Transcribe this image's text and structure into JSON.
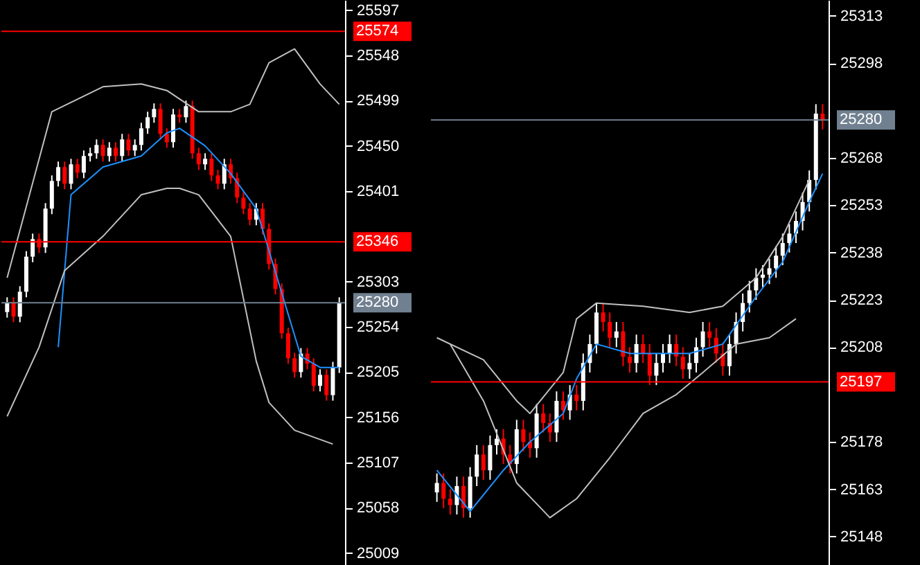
{
  "chart_data": [
    {
      "type": "candlestick",
      "tick_labels": "y",
      "ylim": [
        24996,
        25608
      ],
      "yticks": [
        25597,
        25548,
        25499,
        25450,
        25401,
        25303,
        25254,
        25205,
        25156,
        25107,
        25058,
        25009
      ],
      "categories": [
        null,
        null,
        null,
        null,
        null,
        null,
        null,
        null,
        null,
        null,
        null,
        null,
        null,
        null,
        null,
        null,
        null,
        null,
        null,
        null,
        null,
        null,
        null,
        null,
        null,
        null,
        null,
        null,
        null,
        null,
        null,
        null,
        null,
        null,
        null,
        null,
        null,
        null,
        null,
        null,
        null,
        null,
        null,
        null,
        null,
        null,
        null,
        null,
        null,
        null,
        null,
        null,
        null
      ],
      "ohlc": [
        [
          25270,
          25286,
          25264,
          25280
        ],
        [
          25280,
          25286,
          25259,
          25265
        ],
        [
          25265,
          25298,
          25259,
          25292
        ],
        [
          25292,
          25336,
          25286,
          25330
        ],
        [
          25330,
          25355,
          25324,
          25349
        ],
        [
          25349,
          25355,
          25334,
          25340
        ],
        [
          25340,
          25388,
          25334,
          25382
        ],
        [
          25382,
          25418,
          25376,
          25412
        ],
        [
          25412,
          25433,
          25406,
          25427
        ],
        [
          25427,
          25433,
          25403,
          25409
        ],
        [
          25409,
          25436,
          25403,
          25430
        ],
        [
          25430,
          25436,
          25415,
          25421
        ],
        [
          25421,
          25445,
          25415,
          25439
        ],
        [
          25439,
          25448,
          25433,
          25442
        ],
        [
          25442,
          25457,
          25436,
          25451
        ],
        [
          25451,
          25457,
          25433,
          25439
        ],
        [
          25439,
          25454,
          25433,
          25448
        ],
        [
          25448,
          25454,
          25433,
          25439
        ],
        [
          25439,
          25463,
          25433,
          25457
        ],
        [
          25457,
          25463,
          25439,
          25445
        ],
        [
          25445,
          25457,
          25439,
          25451
        ],
        [
          25451,
          25475,
          25445,
          25469
        ],
        [
          25469,
          25487,
          25463,
          25481
        ],
        [
          25481,
          25496,
          25475,
          25490
        ],
        [
          25490,
          25496,
          25457,
          25463
        ],
        [
          25463,
          25469,
          25448,
          25454
        ],
        [
          25454,
          25490,
          25448,
          25484
        ],
        [
          25484,
          25490,
          25475,
          25481
        ],
        [
          25481,
          25499,
          25475,
          25493
        ],
        [
          25493,
          25499,
          25436,
          25442
        ],
        [
          25442,
          25448,
          25424,
          25430
        ],
        [
          25430,
          25442,
          25424,
          25436
        ],
        [
          25436,
          25442,
          25412,
          25418
        ],
        [
          25418,
          25424,
          25403,
          25409
        ],
        [
          25409,
          25436,
          25403,
          25430
        ],
        [
          25430,
          25436,
          25409,
          25415
        ],
        [
          25415,
          25421,
          25388,
          25394
        ],
        [
          25394,
          25400,
          25376,
          25382
        ],
        [
          25382,
          25388,
          25364,
          25370
        ],
        [
          25370,
          25388,
          25364,
          25382
        ],
        [
          25382,
          25388,
          25354,
          25360
        ],
        [
          25360,
          25366,
          25316,
          25322
        ],
        [
          25322,
          25328,
          25289,
          25295
        ],
        [
          25295,
          25301,
          25241,
          25247
        ],
        [
          25247,
          25253,
          25214,
          25220
        ],
        [
          25220,
          25226,
          25199,
          25205
        ],
        [
          25205,
          25231,
          25199,
          25225
        ],
        [
          25225,
          25231,
          25208,
          25214
        ],
        [
          25214,
          25220,
          25184,
          25190
        ],
        [
          25190,
          25208,
          25184,
          25202
        ],
        [
          25202,
          25208,
          25174,
          25180
        ],
        [
          25180,
          25216,
          25174,
          25210
        ],
        [
          25210,
          25286,
          25204,
          25280
        ]
      ],
      "series": [
        {
          "type": "line",
          "color": "#1e90ff",
          "values": [
            null,
            null,
            null,
            null,
            null,
            null,
            null,
            null,
            25232,
            null,
            25397,
            null,
            null,
            null,
            null,
            25427,
            null,
            null,
            null,
            null,
            null,
            25439,
            null,
            null,
            null,
            25464,
            null,
            25469,
            null,
            null,
            null,
            25450,
            null,
            null,
            null,
            25420,
            null,
            null,
            null,
            25382,
            null,
            null,
            null,
            null,
            null,
            null,
            25222,
            null,
            null,
            25210,
            null,
            null,
            25210
          ]
        },
        {
          "type": "line",
          "color": "#c0c0c0",
          "values": [
            25307,
            null,
            null,
            null,
            null,
            null,
            null,
            25487,
            null,
            null,
            null,
            null,
            null,
            null,
            null,
            25514,
            null,
            null,
            null,
            null,
            null,
            25517,
            null,
            null,
            null,
            25510,
            null,
            null,
            null,
            null,
            25487,
            null,
            null,
            null,
            null,
            25487,
            null,
            null,
            25495,
            null,
            null,
            25540,
            null,
            null,
            null,
            25555,
            null,
            null,
            null,
            25517,
            null,
            null,
            25495
          ]
        },
        {
          "type": "line",
          "color": "#c0c0c0",
          "values": [
            25157,
            null,
            null,
            null,
            null,
            25232,
            null,
            null,
            null,
            25315,
            null,
            null,
            null,
            null,
            null,
            25352,
            null,
            null,
            null,
            null,
            null,
            25397,
            null,
            null,
            null,
            25404,
            null,
            25404,
            null,
            null,
            25397,
            null,
            null,
            null,
            null,
            25352,
            null,
            null,
            null,
            25217,
            null,
            25172,
            null,
            null,
            null,
            25142,
            null,
            null,
            null,
            null,
            null,
            25127,
            null
          ]
        }
      ],
      "ref_lines": [
        {
          "axis": "y",
          "value": 25574,
          "label": "25574",
          "color": "#ff0000"
        },
        {
          "axis": "y",
          "value": 25346,
          "label": "25346",
          "color": "#ff0000"
        },
        {
          "axis": "y",
          "value": 25280,
          "label": "25280",
          "color": "#708090"
        }
      ]
    },
    {
      "type": "candlestick",
      "tick_labels": "y",
      "ylim": [
        25139,
        25318
      ],
      "yticks": [
        25313,
        25298,
        25268,
        25253,
        25238,
        25223,
        25208,
        25178,
        25163,
        25148
      ],
      "categories": [
        null,
        null,
        null,
        null,
        null,
        null,
        null,
        null,
        null,
        null,
        null,
        null,
        null,
        null,
        null,
        null,
        null,
        null,
        null,
        null,
        null,
        null,
        null,
        null,
        null,
        null,
        null,
        null,
        null,
        null,
        null,
        null,
        null,
        null,
        null,
        null,
        null,
        null,
        null,
        null,
        null,
        null,
        null,
        null,
        null,
        null,
        null,
        null,
        null,
        null,
        null,
        null,
        null,
        null,
        null,
        null,
        null,
        null,
        null
      ],
      "ohlc": [
        [
          25162,
          25168,
          25159,
          25165
        ],
        [
          25165,
          25168,
          25157,
          25160
        ],
        [
          25160,
          25163,
          25155,
          25158
        ],
        [
          25158,
          25167,
          25155,
          25164
        ],
        [
          25164,
          25167,
          25154,
          25157
        ],
        [
          25157,
          25170,
          25154,
          25167
        ],
        [
          25167,
          25177,
          25164,
          25174
        ],
        [
          25174,
          25177,
          25166,
          25169
        ],
        [
          25169,
          25180,
          25166,
          25177
        ],
        [
          25177,
          25182,
          25174,
          25179
        ],
        [
          25179,
          25182,
          25171,
          25174
        ],
        [
          25174,
          25177,
          25168,
          25171
        ],
        [
          25171,
          25185,
          25168,
          25182
        ],
        [
          25182,
          25185,
          25175,
          25178
        ],
        [
          25178,
          25181,
          25173,
          25176
        ],
        [
          25176,
          25190,
          25173,
          25187
        ],
        [
          25187,
          25190,
          25181,
          25184
        ],
        [
          25184,
          25187,
          25178,
          25181
        ],
        [
          25181,
          25194,
          25178,
          25191
        ],
        [
          25191,
          25194,
          25185,
          25188
        ],
        [
          25188,
          25196,
          25185,
          25193
        ],
        [
          25193,
          25196,
          25188,
          25191
        ],
        [
          25191,
          25206,
          25188,
          25203
        ],
        [
          25203,
          25212,
          25200,
          25209
        ],
        [
          25209,
          25222,
          25206,
          25219
        ],
        [
          25219,
          25222,
          25213,
          25216
        ],
        [
          25216,
          25219,
          25208,
          25211
        ],
        [
          25211,
          25216,
          25208,
          25213
        ],
        [
          25213,
          25216,
          25202,
          25205
        ],
        [
          25205,
          25208,
          25200,
          25203
        ],
        [
          25203,
          25212,
          25200,
          25209
        ],
        [
          25209,
          25212,
          25203,
          25206
        ],
        [
          25206,
          25209,
          25196,
          25199
        ],
        [
          25199,
          25206,
          25196,
          25203
        ],
        [
          25203,
          25209,
          25200,
          25206
        ],
        [
          25206,
          25212,
          25203,
          25209
        ],
        [
          25209,
          25212,
          25202,
          25205
        ],
        [
          25205,
          25208,
          25198,
          25201
        ],
        [
          25201,
          25206,
          25198,
          25203
        ],
        [
          25203,
          25211,
          25200,
          25208
        ],
        [
          25208,
          25216,
          25205,
          25213
        ],
        [
          25213,
          25216,
          25208,
          25211
        ],
        [
          25211,
          25214,
          25203,
          25206
        ],
        [
          25206,
          25209,
          25199,
          25202
        ],
        [
          25202,
          25212,
          25199,
          25209
        ],
        [
          25209,
          25219,
          25206,
          25216
        ],
        [
          25216,
          25225,
          25213,
          25222
        ],
        [
          25222,
          25229,
          25219,
          25226
        ],
        [
          25226,
          25233,
          25223,
          25230
        ],
        [
          25230,
          25234,
          25227,
          25231
        ],
        [
          25231,
          25236,
          25228,
          25233
        ],
        [
          25233,
          25240,
          25230,
          25237
        ],
        [
          25237,
          25244,
          25234,
          25241
        ],
        [
          25241,
          25247,
          25238,
          25244
        ],
        [
          25244,
          25251,
          25241,
          25248
        ],
        [
          25248,
          25257,
          25245,
          25254
        ],
        [
          25254,
          25264,
          25251,
          25261
        ],
        [
          25261,
          25285,
          25258,
          25282
        ],
        [
          25282,
          25285,
          25277,
          25280
        ]
      ],
      "series": [
        {
          "type": "line",
          "color": "#1e90ff",
          "values": [
            25169,
            null,
            null,
            null,
            null,
            25156,
            null,
            null,
            null,
            null,
            25169,
            null,
            null,
            null,
            25178,
            null,
            null,
            null,
            null,
            25187,
            null,
            25198,
            null,
            null,
            25209,
            null,
            null,
            null,
            null,
            25206,
            null,
            null,
            null,
            25206,
            null,
            null,
            null,
            null,
            25206,
            null,
            null,
            null,
            null,
            25209,
            null,
            null,
            null,
            null,
            25224,
            null,
            null,
            null,
            25235,
            null,
            null,
            null,
            25254,
            null,
            25263
          ]
        },
        {
          "type": "line",
          "color": "#c0c0c0",
          "values": [
            25211,
            null,
            null,
            null,
            null,
            null,
            null,
            25204,
            null,
            null,
            null,
            null,
            25191,
            null,
            25187,
            null,
            null,
            null,
            null,
            25200,
            null,
            25217,
            null,
            null,
            25222,
            null,
            null,
            null,
            null,
            null,
            null,
            25221,
            null,
            null,
            null,
            null,
            null,
            null,
            25219,
            null,
            null,
            null,
            null,
            25221,
            null,
            null,
            null,
            null,
            25230,
            null,
            null,
            null,
            25243,
            null,
            null,
            null,
            25261,
            null,
            null
          ]
        },
        {
          "type": "line",
          "color": "#c0c0c0",
          "values": [
            null,
            null,
            25209,
            null,
            null,
            null,
            null,
            25191,
            null,
            null,
            null,
            null,
            25165,
            null,
            null,
            null,
            null,
            25154,
            null,
            null,
            null,
            25160,
            null,
            null,
            null,
            null,
            25173,
            null,
            null,
            null,
            null,
            25187,
            null,
            null,
            null,
            null,
            25193,
            null,
            null,
            null,
            25200,
            null,
            null,
            null,
            null,
            25209,
            null,
            null,
            null,
            null,
            25211,
            null,
            null,
            null,
            25217,
            null,
            null,
            null,
            null
          ]
        }
      ],
      "ref_lines": [
        {
          "axis": "y",
          "value": 25280,
          "label": "25280",
          "color": "#708090"
        },
        {
          "axis": "y",
          "value": 25197,
          "label": "25197",
          "color": "#ff0000"
        }
      ]
    }
  ]
}
